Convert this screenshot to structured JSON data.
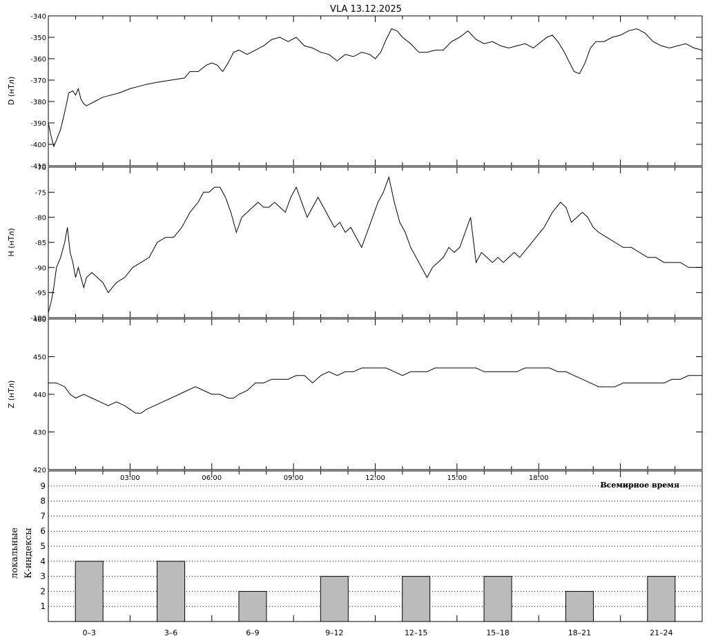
{
  "title": "VLA   13.12.2025",
  "chart_data": [
    {
      "type": "line",
      "panel": "D",
      "ylabel": "D (нТл)",
      "ylim": [
        -410,
        -340
      ],
      "yticks": [
        -340,
        -350,
        -360,
        -370,
        -380,
        -390,
        -400,
        -410
      ],
      "xlim": [
        0,
        24
      ],
      "series": [
        {
          "x": [
            0,
            0.1,
            0.2,
            0.3,
            0.45,
            0.6,
            0.75,
            0.9,
            1.0,
            1.1,
            1.2,
            1.3,
            1.4,
            1.55,
            1.7,
            1.85,
            2.0,
            2.3,
            2.6,
            3.0,
            3.3,
            3.6,
            4.0,
            4.5,
            5.0,
            5.2,
            5.5,
            5.8,
            6.0,
            6.2,
            6.4,
            6.6,
            6.8,
            7.0,
            7.3,
            7.6,
            7.9,
            8.2,
            8.5,
            8.8,
            9.1,
            9.4,
            9.7,
            10.0,
            10.3,
            10.6,
            10.9,
            11.2,
            11.5,
            11.8,
            12.0,
            12.2,
            12.4,
            12.6,
            12.8,
            13.0,
            13.3,
            13.6,
            13.9,
            14.2,
            14.5,
            14.8,
            15.1,
            15.4,
            15.7,
            16.0,
            16.3,
            16.6,
            16.9,
            17.2,
            17.5,
            17.8,
            18.1,
            18.3,
            18.5,
            18.7,
            18.9,
            19.1,
            19.3,
            19.5,
            19.7,
            19.9,
            20.1,
            20.4,
            20.7,
            21.0,
            21.3,
            21.6,
            21.9,
            22.2,
            22.5,
            22.8,
            23.1,
            23.4,
            23.7,
            24.0
          ],
          "y": [
            -390,
            -396,
            -401,
            -398,
            -393,
            -385,
            -376,
            -375,
            -377,
            -374,
            -379,
            -381,
            -382,
            -381,
            -380,
            -379,
            -378,
            -377,
            -376,
            -374,
            -373,
            -372,
            -371,
            -370,
            -369,
            -366,
            -366,
            -363,
            -362,
            -363,
            -366,
            -362,
            -357,
            -356,
            -358,
            -356,
            -354,
            -351,
            -350,
            -352,
            -350,
            -354,
            -355,
            -357,
            -358,
            -361,
            -358,
            -359,
            -357,
            -358,
            -360,
            -357,
            -351,
            -346,
            -347,
            -350,
            -353,
            -357,
            -357,
            -356,
            -356,
            -352,
            -350,
            -347,
            -351,
            -353,
            -352,
            -354,
            -355,
            -354,
            -353,
            -355,
            -352,
            -350,
            -349,
            -352,
            -356,
            -361,
            -366,
            -367,
            -362,
            -355,
            -352,
            -352,
            -350,
            -349,
            -347,
            -346,
            -348,
            -352,
            -354,
            -355,
            -354,
            -353,
            -355,
            -356
          ]
        }
      ]
    },
    {
      "type": "line",
      "panel": "H",
      "ylabel": "H (нТл)",
      "ylim": [
        -100,
        -70
      ],
      "yticks": [
        -70,
        -75,
        -80,
        -85,
        -90,
        -95,
        -100
      ],
      "xlim": [
        0,
        24
      ],
      "series": [
        {
          "x": [
            0,
            0.1,
            0.2,
            0.3,
            0.45,
            0.6,
            0.7,
            0.8,
            0.9,
            1.0,
            1.1,
            1.2,
            1.3,
            1.4,
            1.6,
            1.8,
            2.0,
            2.2,
            2.5,
            2.8,
            3.1,
            3.4,
            3.7,
            4.0,
            4.3,
            4.6,
            4.9,
            5.2,
            5.5,
            5.7,
            5.9,
            6.1,
            6.3,
            6.5,
            6.7,
            6.9,
            7.1,
            7.3,
            7.5,
            7.7,
            7.9,
            8.1,
            8.3,
            8.5,
            8.7,
            8.9,
            9.1,
            9.3,
            9.5,
            9.7,
            9.9,
            10.1,
            10.3,
            10.5,
            10.7,
            10.9,
            11.1,
            11.3,
            11.5,
            11.7,
            11.9,
            12.1,
            12.3,
            12.5,
            12.7,
            12.9,
            13.1,
            13.3,
            13.5,
            13.7,
            13.9,
            14.1,
            14.3,
            14.5,
            14.7,
            14.9,
            15.1,
            15.3,
            15.5,
            15.7,
            15.9,
            16.1,
            16.3,
            16.5,
            16.7,
            16.9,
            17.1,
            17.3,
            17.6,
            17.9,
            18.2,
            18.5,
            18.8,
            19.0,
            19.2,
            19.4,
            19.6,
            19.8,
            20.0,
            20.2,
            20.5,
            20.8,
            21.1,
            21.4,
            21.7,
            22.0,
            22.3,
            22.6,
            22.9,
            23.2,
            23.5,
            23.8,
            24.0
          ],
          "y": [
            -99,
            -97,
            -94,
            -90,
            -88,
            -85,
            -82,
            -87,
            -89,
            -92,
            -90,
            -92,
            -94,
            -92,
            -91,
            -92,
            -93,
            -95,
            -93,
            -92,
            -90,
            -89,
            -88,
            -85,
            -84,
            -84,
            -82,
            -79,
            -77,
            -75,
            -75,
            -74,
            -74,
            -76,
            -79,
            -83,
            -80,
            -79,
            -78,
            -77,
            -78,
            -78,
            -77,
            -78,
            -79,
            -76,
            -74,
            -77,
            -80,
            -78,
            -76,
            -78,
            -80,
            -82,
            -81,
            -83,
            -82,
            -84,
            -86,
            -83,
            -80,
            -77,
            -75,
            -72,
            -77,
            -81,
            -83,
            -86,
            -88,
            -90,
            -92,
            -90,
            -89,
            -88,
            -86,
            -87,
            -86,
            -83,
            -80,
            -89,
            -87,
            -88,
            -89,
            -88,
            -89,
            -88,
            -87,
            -88,
            -86,
            -84,
            -82,
            -79,
            -77,
            -78,
            -81,
            -80,
            -79,
            -80,
            -82,
            -83,
            -84,
            -85,
            -86,
            -86,
            -87,
            -88,
            -88,
            -89,
            -89,
            -89,
            -90,
            -90,
            -90
          ]
        }
      ]
    },
    {
      "type": "line",
      "panel": "Z",
      "ylabel": "Z (нТл)",
      "ylim": [
        420,
        460
      ],
      "yticks": [
        420,
        430,
        440,
        450,
        460
      ],
      "xlim": [
        0,
        24
      ],
      "xticks": [
        "03:00",
        "06:00",
        "09:00",
        "12:00",
        "15:00",
        "18:00"
      ],
      "xlabel": "Всемирное время",
      "series": [
        {
          "x": [
            0,
            0.3,
            0.6,
            0.8,
            1.0,
            1.3,
            1.6,
            1.9,
            2.2,
            2.5,
            2.8,
            3.0,
            3.2,
            3.4,
            3.6,
            3.9,
            4.2,
            4.5,
            4.8,
            5.1,
            5.4,
            5.7,
            6.0,
            6.3,
            6.6,
            6.8,
            7.0,
            7.3,
            7.6,
            7.9,
            8.2,
            8.5,
            8.8,
            9.1,
            9.4,
            9.7,
            10.0,
            10.3,
            10.6,
            10.9,
            11.2,
            11.5,
            11.8,
            12.1,
            12.4,
            12.7,
            13.0,
            13.3,
            13.6,
            13.9,
            14.2,
            14.5,
            14.8,
            15.1,
            15.4,
            15.7,
            16.0,
            16.3,
            16.6,
            16.9,
            17.2,
            17.5,
            17.8,
            18.1,
            18.4,
            18.7,
            19.0,
            19.3,
            19.6,
            19.9,
            20.2,
            20.5,
            20.8,
            21.1,
            21.4,
            21.7,
            22.0,
            22.3,
            22.6,
            22.9,
            23.2,
            23.5,
            23.8,
            24.0
          ],
          "y": [
            443,
            443,
            442,
            440,
            439,
            440,
            439,
            438,
            437,
            438,
            437,
            436,
            435,
            435,
            436,
            437,
            438,
            439,
            440,
            441,
            442,
            441,
            440,
            440,
            439,
            439,
            440,
            441,
            443,
            443,
            444,
            444,
            444,
            445,
            445,
            443,
            445,
            446,
            445,
            446,
            446,
            447,
            447,
            447,
            447,
            446,
            445,
            446,
            446,
            446,
            447,
            447,
            447,
            447,
            447,
            447,
            446,
            446,
            446,
            446,
            446,
            447,
            447,
            447,
            447,
            446,
            446,
            445,
            444,
            443,
            442,
            442,
            442,
            443,
            443,
            443,
            443,
            443,
            443,
            444,
            444,
            445,
            445,
            445
          ]
        }
      ]
    },
    {
      "type": "bar",
      "panel": "K",
      "ylabel": [
        "локальные",
        "К-индексы"
      ],
      "ylim": [
        0,
        10
      ],
      "yticks": [
        1,
        2,
        3,
        4,
        5,
        6,
        7,
        8,
        9
      ],
      "categories": [
        "0–3",
        "3–6",
        "6–9",
        "9–12",
        "12–15",
        "15–18",
        "18–21",
        "21–24"
      ],
      "values": [
        4,
        4,
        2,
        3,
        3,
        3,
        2,
        3
      ]
    }
  ],
  "colors": {
    "line": "#000000",
    "bar_fill": "#bbbbbb",
    "grid": "#000000",
    "background": "#ffffff"
  }
}
